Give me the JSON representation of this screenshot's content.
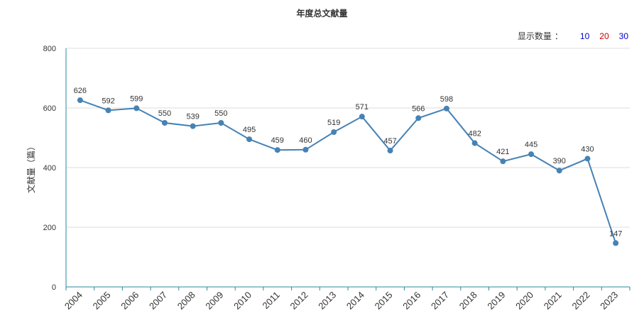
{
  "chart_data": {
    "type": "line",
    "title": "年度总文献量",
    "ylabel": "文献量（篇）",
    "xlabel": "",
    "categories": [
      "2004",
      "2005",
      "2006",
      "2007",
      "2008",
      "2009",
      "2010",
      "2011",
      "2012",
      "2013",
      "2014",
      "2015",
      "2016",
      "2017",
      "2018",
      "2019",
      "2020",
      "2021",
      "2022",
      "2023"
    ],
    "values": [
      626,
      592,
      599,
      550,
      539,
      550,
      495,
      459,
      460,
      519,
      571,
      457,
      566,
      598,
      482,
      421,
      445,
      390,
      430,
      147
    ],
    "ylim": [
      0,
      800
    ],
    "yticks": [
      0,
      200,
      400,
      600,
      800
    ],
    "grid": true,
    "line_color": "#4682b4"
  },
  "controls": {
    "display_count_label": "显示数量",
    "colon": "：",
    "options": [
      {
        "label": "10",
        "color": "#0000cc"
      },
      {
        "label": "20",
        "color": "#cc0000"
      },
      {
        "label": "30",
        "color": "#0000cc"
      }
    ]
  }
}
